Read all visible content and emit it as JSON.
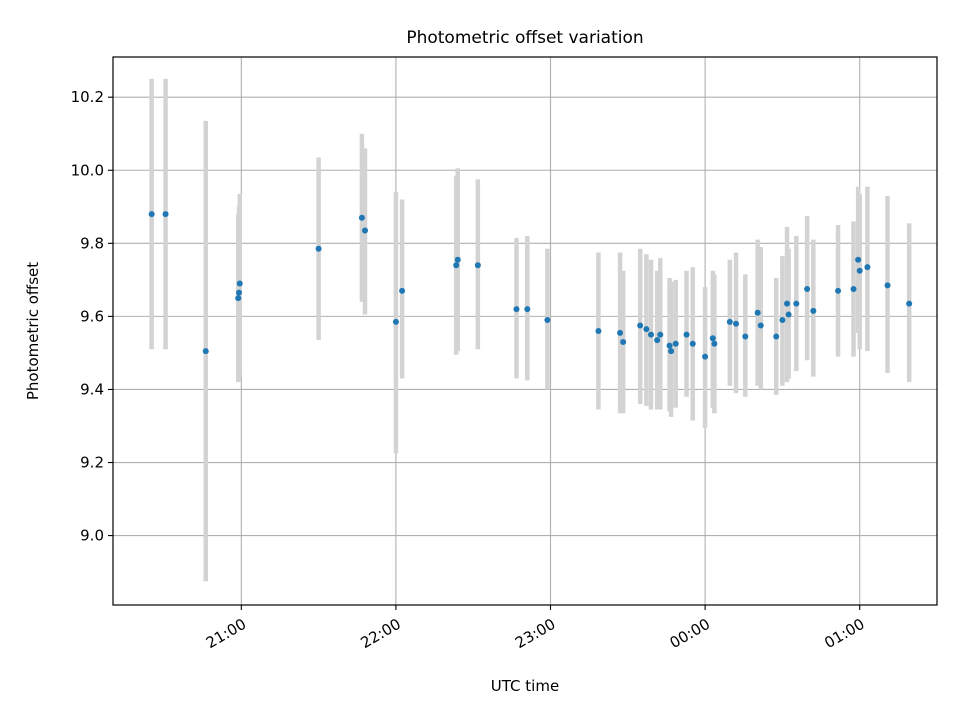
{
  "chart_data": {
    "type": "scatter",
    "title": "Photometric offset variation",
    "xlabel": "UTC time",
    "ylabel": "Photometric offset",
    "x_unit": "hours since 00:00 UTC",
    "xlim": [
      -3.83,
      1.5
    ],
    "ylim": [
      8.81,
      10.31
    ],
    "grid": true,
    "x_ticks": [
      {
        "value": -3,
        "label": "21:00"
      },
      {
        "value": -2,
        "label": "22:00"
      },
      {
        "value": -1,
        "label": "23:00"
      },
      {
        "value": 0,
        "label": "00:00"
      },
      {
        "value": 1,
        "label": "01:00"
      }
    ],
    "y_ticks": [
      {
        "value": 9.0,
        "label": "9.0"
      },
      {
        "value": 9.2,
        "label": "9.2"
      },
      {
        "value": 9.4,
        "label": "9.4"
      },
      {
        "value": 9.6,
        "label": "9.6"
      },
      {
        "value": 9.8,
        "label": "9.8"
      },
      {
        "value": 10.0,
        "label": "10.0"
      },
      {
        "value": 10.2,
        "label": "10.2"
      }
    ],
    "colors": {
      "point": "#1f77b4",
      "errorbar": "#d3d3d3",
      "grid": "#b0b0b0"
    },
    "series": [
      {
        "points": [
          {
            "x": -3.58,
            "y": 9.88,
            "low": 9.51,
            "high": 10.25
          },
          {
            "x": -3.49,
            "y": 9.88,
            "low": 9.51,
            "high": 10.25
          },
          {
            "x": -3.23,
            "y": 9.505,
            "low": 8.875,
            "high": 10.135
          },
          {
            "x": -3.02,
            "y": 9.65,
            "low": 9.42,
            "high": 9.88
          },
          {
            "x": -3.015,
            "y": 9.665,
            "low": 9.43,
            "high": 9.9
          },
          {
            "x": -3.01,
            "y": 9.69,
            "low": 9.44,
            "high": 9.935
          },
          {
            "x": -2.5,
            "y": 9.785,
            "low": 9.535,
            "high": 10.035
          },
          {
            "x": -2.22,
            "y": 9.87,
            "low": 9.64,
            "high": 10.1
          },
          {
            "x": -2.2,
            "y": 9.835,
            "low": 9.605,
            "high": 10.06
          },
          {
            "x": -2.0,
            "y": 9.585,
            "low": 9.225,
            "high": 9.94
          },
          {
            "x": -1.96,
            "y": 9.67,
            "low": 9.43,
            "high": 9.92
          },
          {
            "x": -1.61,
            "y": 9.74,
            "low": 9.495,
            "high": 9.985
          },
          {
            "x": -1.6,
            "y": 9.755,
            "low": 9.505,
            "high": 10.005
          },
          {
            "x": -1.47,
            "y": 9.74,
            "low": 9.51,
            "high": 9.975
          },
          {
            "x": -1.22,
            "y": 9.62,
            "low": 9.43,
            "high": 9.815
          },
          {
            "x": -1.15,
            "y": 9.62,
            "low": 9.425,
            "high": 9.82
          },
          {
            "x": -1.02,
            "y": 9.59,
            "low": 9.4,
            "high": 9.785
          },
          {
            "x": -0.69,
            "y": 9.56,
            "low": 9.345,
            "high": 9.775
          },
          {
            "x": -0.55,
            "y": 9.555,
            "low": 9.335,
            "high": 9.775
          },
          {
            "x": -0.53,
            "y": 9.53,
            "low": 9.335,
            "high": 9.725
          },
          {
            "x": -0.42,
            "y": 9.575,
            "low": 9.36,
            "high": 9.785
          },
          {
            "x": -0.38,
            "y": 9.565,
            "low": 9.355,
            "high": 9.77
          },
          {
            "x": -0.35,
            "y": 9.55,
            "low": 9.345,
            "high": 9.755
          },
          {
            "x": -0.31,
            "y": 9.535,
            "low": 9.345,
            "high": 9.725
          },
          {
            "x": -0.29,
            "y": 9.55,
            "low": 9.345,
            "high": 9.76
          },
          {
            "x": -0.23,
            "y": 9.52,
            "low": 9.34,
            "high": 9.705
          },
          {
            "x": -0.22,
            "y": 9.505,
            "low": 9.325,
            "high": 9.695
          },
          {
            "x": -0.19,
            "y": 9.525,
            "low": 9.35,
            "high": 9.7
          },
          {
            "x": -0.12,
            "y": 9.55,
            "low": 9.38,
            "high": 9.725
          },
          {
            "x": -0.08,
            "y": 9.525,
            "low": 9.315,
            "high": 9.735
          },
          {
            "x": 0.0,
            "y": 9.49,
            "low": 9.295,
            "high": 9.68
          },
          {
            "x": 0.05,
            "y": 9.54,
            "low": 9.35,
            "high": 9.725
          },
          {
            "x": 0.06,
            "y": 9.525,
            "low": 9.335,
            "high": 9.715
          },
          {
            "x": 0.16,
            "y": 9.585,
            "low": 9.41,
            "high": 9.755
          },
          {
            "x": 0.2,
            "y": 9.58,
            "low": 9.39,
            "high": 9.775
          },
          {
            "x": 0.26,
            "y": 9.545,
            "low": 9.38,
            "high": 9.715
          },
          {
            "x": 0.34,
            "y": 9.61,
            "low": 9.41,
            "high": 9.81
          },
          {
            "x": 0.36,
            "y": 9.575,
            "low": 9.4,
            "high": 9.79
          },
          {
            "x": 0.46,
            "y": 9.545,
            "low": 9.385,
            "high": 9.705
          },
          {
            "x": 0.5,
            "y": 9.59,
            "low": 9.41,
            "high": 9.765
          },
          {
            "x": 0.53,
            "y": 9.635,
            "low": 9.42,
            "high": 9.845
          },
          {
            "x": 0.54,
            "y": 9.605,
            "low": 9.43,
            "high": 9.785
          },
          {
            "x": 0.59,
            "y": 9.635,
            "low": 9.45,
            "high": 9.82
          },
          {
            "x": 0.66,
            "y": 9.675,
            "low": 9.48,
            "high": 9.875
          },
          {
            "x": 0.7,
            "y": 9.615,
            "low": 9.435,
            "high": 9.81
          },
          {
            "x": 0.86,
            "y": 9.67,
            "low": 9.49,
            "high": 9.85
          },
          {
            "x": 0.96,
            "y": 9.675,
            "low": 9.49,
            "high": 9.86
          },
          {
            "x": 0.99,
            "y": 9.755,
            "low": 9.555,
            "high": 9.955
          },
          {
            "x": 1.0,
            "y": 9.725,
            "low": 9.51,
            "high": 9.935
          },
          {
            "x": 1.05,
            "y": 9.735,
            "low": 9.505,
            "high": 9.955
          },
          {
            "x": 1.18,
            "y": 9.685,
            "low": 9.445,
            "high": 9.93
          },
          {
            "x": 1.32,
            "y": 9.635,
            "low": 9.42,
            "high": 9.855
          }
        ]
      }
    ]
  }
}
